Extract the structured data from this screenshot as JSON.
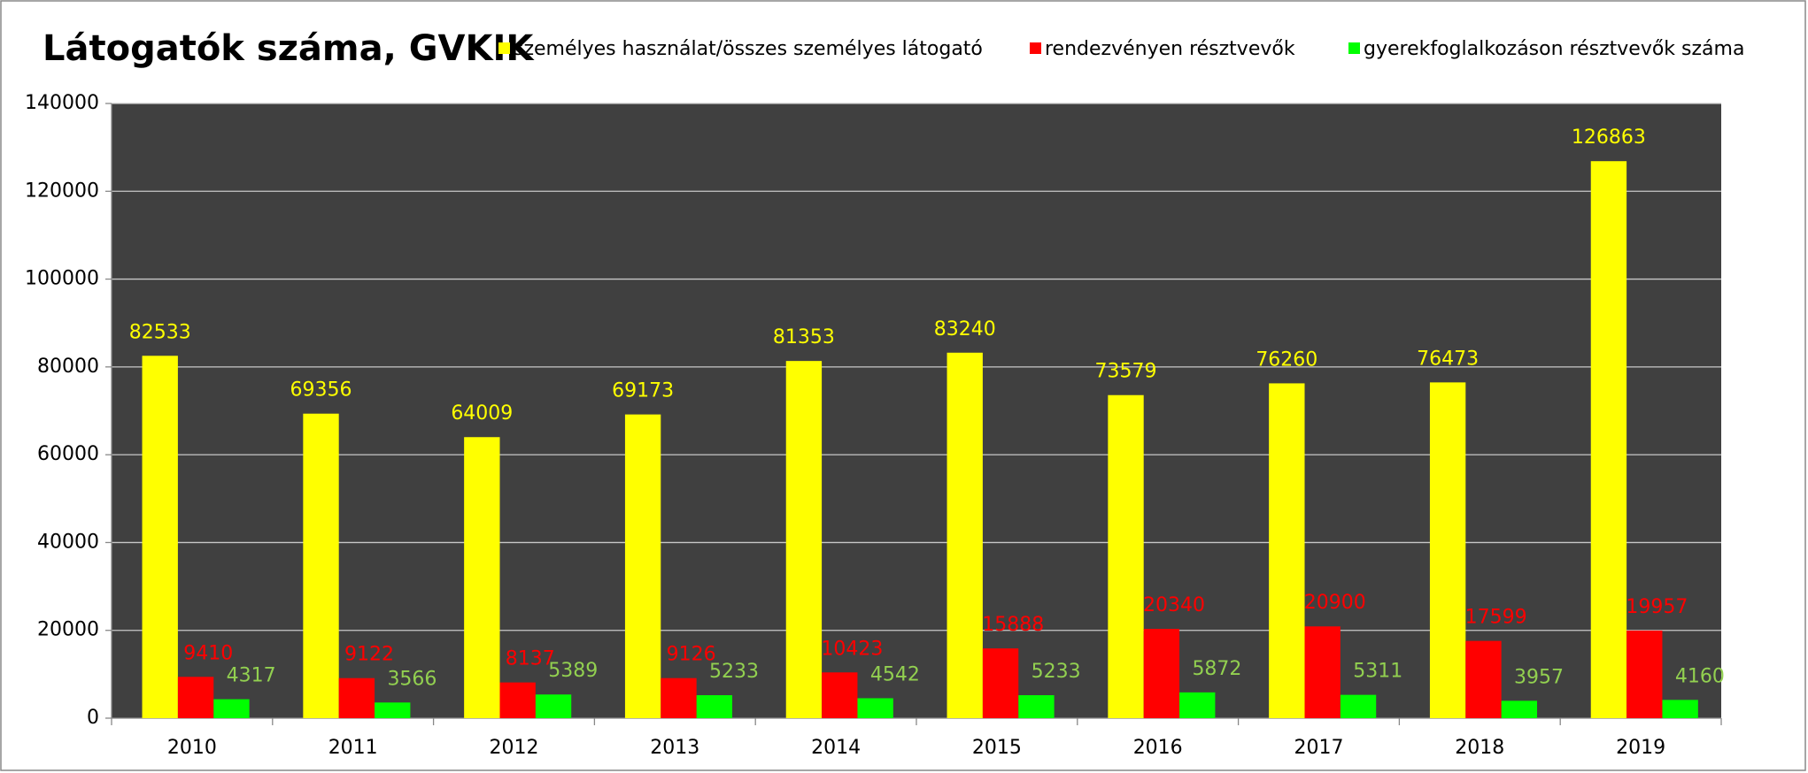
{
  "chart_data": {
    "type": "bar",
    "title": "Látogatók száma, GVKIK",
    "categories": [
      "2010",
      "2011",
      "2012",
      "2013",
      "2014",
      "2015",
      "2016",
      "2017",
      "2018",
      "2019"
    ],
    "series": [
      {
        "name": "személyes használat/összes személyes látogató",
        "color": "#ffff00",
        "label_color": "#ffff00",
        "values": [
          82533,
          69356,
          64009,
          69173,
          81353,
          83240,
          73579,
          76260,
          76473,
          126863
        ]
      },
      {
        "name": "rendezvényen résztvevők",
        "color": "#ff0000",
        "label_color": "#ff0000",
        "values": [
          9410,
          9122,
          8137,
          9126,
          10423,
          15888,
          20340,
          20900,
          17599,
          19957
        ]
      },
      {
        "name": "gyerekfoglalkozáson résztvevők száma",
        "color": "#00ff00",
        "label_color": "#92d050",
        "values": [
          4317,
          3566,
          5389,
          5233,
          4542,
          5233,
          5872,
          5311,
          3957,
          4160
        ]
      }
    ],
    "ylim": [
      0,
      140000
    ],
    "yticks": [
      0,
      20000,
      40000,
      60000,
      80000,
      100000,
      120000,
      140000
    ],
    "grid": true,
    "legend": "top",
    "plot_background": "#404040"
  }
}
